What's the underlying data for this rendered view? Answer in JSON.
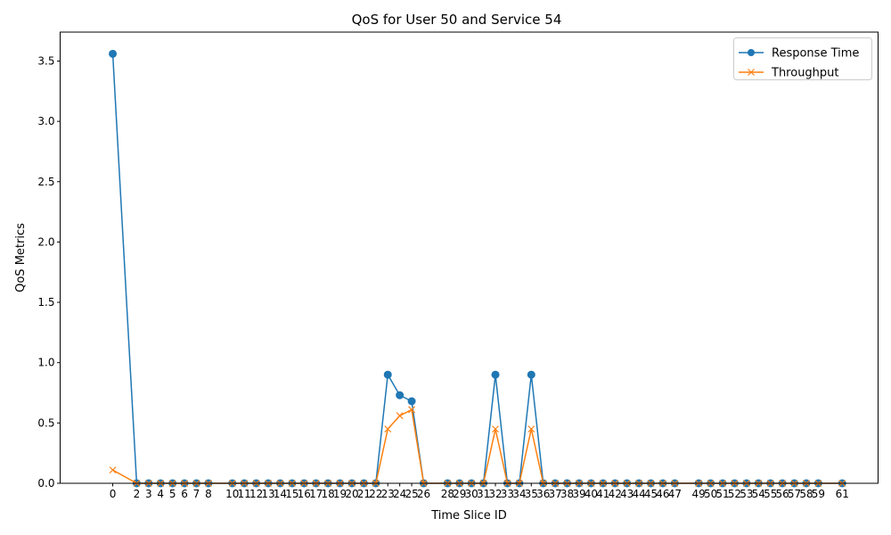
{
  "chart_data": {
    "type": "line",
    "title": "QoS for User 50 and Service 54",
    "xlabel": "Time Slice ID",
    "ylabel": "QoS Metrics",
    "xlim": [
      -4.4,
      64
    ],
    "ylim": [
      0,
      3.74
    ],
    "yticks": [
      "0.0",
      "0.5",
      "1.0",
      "1.5",
      "2.0",
      "2.5",
      "3.0",
      "3.5"
    ],
    "grid": false,
    "legend_position": "top-right",
    "x": [
      0,
      2,
      3,
      4,
      5,
      6,
      7,
      8,
      10,
      11,
      12,
      13,
      14,
      15,
      16,
      17,
      18,
      19,
      20,
      21,
      22,
      23,
      24,
      25,
      26,
      28,
      29,
      30,
      31,
      32,
      33,
      34,
      35,
      36,
      37,
      38,
      39,
      40,
      41,
      42,
      43,
      44,
      45,
      46,
      47,
      49,
      50,
      51,
      52,
      53,
      54,
      55,
      56,
      57,
      58,
      59,
      61
    ],
    "series": [
      {
        "name": "Response Time",
        "color": "#1f77b4",
        "marker": "circle",
        "values": [
          3.56,
          0,
          0,
          0,
          0,
          0,
          0,
          0,
          0,
          0,
          0,
          0,
          0,
          0,
          0,
          0,
          0,
          0,
          0,
          0,
          0,
          0.9,
          0.73,
          0.68,
          0,
          0,
          0,
          0,
          0,
          0.9,
          0,
          0,
          0.9,
          0,
          0,
          0,
          0,
          0,
          0,
          0,
          0,
          0,
          0,
          0,
          0,
          0,
          0,
          0,
          0,
          0,
          0,
          0,
          0,
          0,
          0,
          0,
          0
        ]
      },
      {
        "name": "Throughput",
        "color": "#ff7f0e",
        "marker": "x",
        "values": [
          0.11,
          0,
          0,
          0,
          0,
          0,
          0,
          0,
          0,
          0,
          0,
          0,
          0,
          0,
          0,
          0,
          0,
          0,
          0,
          0,
          0,
          0.45,
          0.56,
          0.61,
          0,
          0,
          0,
          0,
          0,
          0.45,
          0,
          0,
          0.45,
          0,
          0,
          0,
          0,
          0,
          0,
          0,
          0,
          0,
          0,
          0,
          0,
          0,
          0,
          0,
          0,
          0,
          0,
          0,
          0,
          0,
          0,
          0,
          0
        ]
      }
    ]
  }
}
